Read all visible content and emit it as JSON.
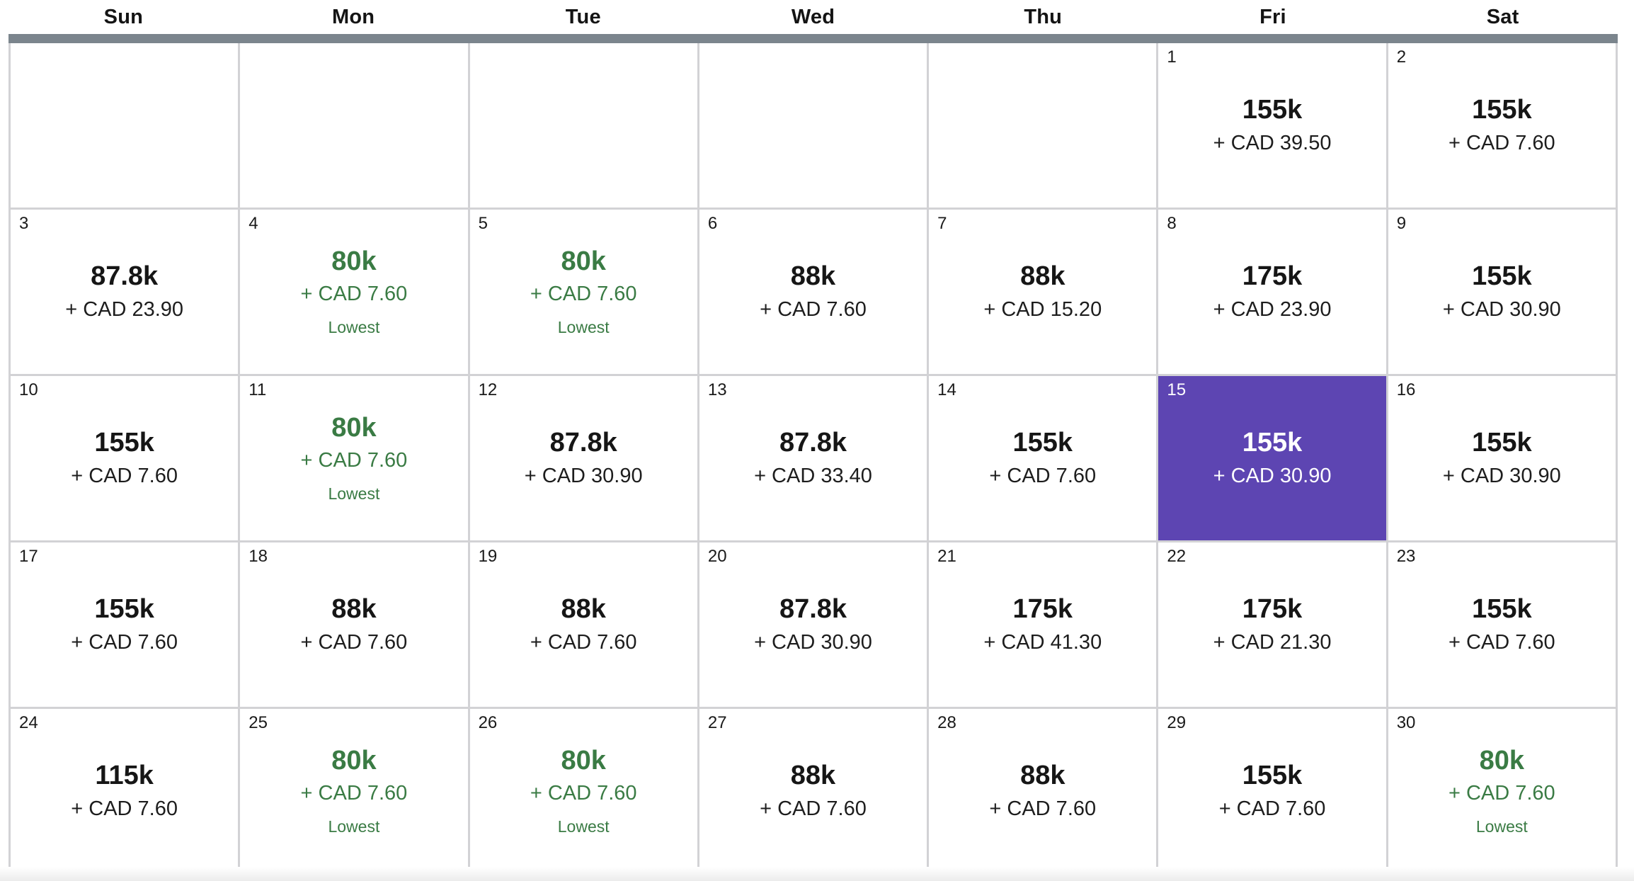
{
  "weekday_headers": [
    "Sun",
    "Mon",
    "Tue",
    "Wed",
    "Thu",
    "Fri",
    "Sat"
  ],
  "colors": {
    "selected_bg": "#5d45b2",
    "lowest_green": "#3a7b44",
    "divider_gray": "#7b858d",
    "grid_line": "#d2d2d5"
  },
  "weeks": [
    [
      {
        "empty": true
      },
      {
        "empty": true
      },
      {
        "empty": true
      },
      {
        "empty": true
      },
      {
        "empty": true
      },
      {
        "day": "1",
        "points": "155k",
        "fee": "+ CAD 39.50"
      },
      {
        "day": "2",
        "points": "155k",
        "fee": "+ CAD 7.60"
      }
    ],
    [
      {
        "day": "3",
        "points": "87.8k",
        "fee": "+ CAD 23.90"
      },
      {
        "day": "4",
        "points": "80k",
        "fee": "+ CAD 7.60",
        "tag": "Lowest"
      },
      {
        "day": "5",
        "points": "80k",
        "fee": "+ CAD 7.60",
        "tag": "Lowest"
      },
      {
        "day": "6",
        "points": "88k",
        "fee": "+ CAD 7.60"
      },
      {
        "day": "7",
        "points": "88k",
        "fee": "+ CAD 15.20"
      },
      {
        "day": "8",
        "points": "175k",
        "fee": "+ CAD 23.90"
      },
      {
        "day": "9",
        "points": "155k",
        "fee": "+ CAD 30.90"
      }
    ],
    [
      {
        "day": "10",
        "points": "155k",
        "fee": "+ CAD 7.60"
      },
      {
        "day": "11",
        "points": "80k",
        "fee": "+ CAD 7.60",
        "tag": "Lowest"
      },
      {
        "day": "12",
        "points": "87.8k",
        "fee": "+ CAD 30.90"
      },
      {
        "day": "13",
        "points": "87.8k",
        "fee": "+ CAD 33.40"
      },
      {
        "day": "14",
        "points": "155k",
        "fee": "+ CAD 7.60"
      },
      {
        "day": "15",
        "points": "155k",
        "fee": "+ CAD 30.90",
        "selected": true
      },
      {
        "day": "16",
        "points": "155k",
        "fee": "+ CAD 30.90"
      }
    ],
    [
      {
        "day": "17",
        "points": "155k",
        "fee": "+ CAD 7.60"
      },
      {
        "day": "18",
        "points": "88k",
        "fee": "+ CAD 7.60"
      },
      {
        "day": "19",
        "points": "88k",
        "fee": "+ CAD 7.60"
      },
      {
        "day": "20",
        "points": "87.8k",
        "fee": "+ CAD 30.90"
      },
      {
        "day": "21",
        "points": "175k",
        "fee": "+ CAD 41.30"
      },
      {
        "day": "22",
        "points": "175k",
        "fee": "+ CAD 21.30"
      },
      {
        "day": "23",
        "points": "155k",
        "fee": "+ CAD 7.60"
      }
    ],
    [
      {
        "day": "24",
        "points": "115k",
        "fee": "+ CAD 7.60"
      },
      {
        "day": "25",
        "points": "80k",
        "fee": "+ CAD 7.60",
        "tag": "Lowest"
      },
      {
        "day": "26",
        "points": "80k",
        "fee": "+ CAD 7.60",
        "tag": "Lowest"
      },
      {
        "day": "27",
        "points": "88k",
        "fee": "+ CAD 7.60"
      },
      {
        "day": "28",
        "points": "88k",
        "fee": "+ CAD 7.60"
      },
      {
        "day": "29",
        "points": "155k",
        "fee": "+ CAD 7.60"
      },
      {
        "day": "30",
        "points": "80k",
        "fee": "+ CAD 7.60",
        "tag": "Lowest"
      }
    ]
  ]
}
